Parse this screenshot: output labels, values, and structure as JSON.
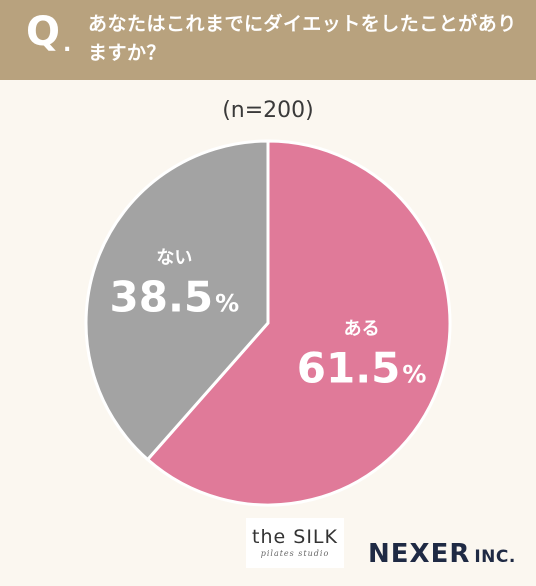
{
  "header": {
    "q_mark": "Q",
    "q_dot": ".",
    "question": "あなたはこれまでにダイエットをしたことがありますか？"
  },
  "chart_data": {
    "type": "pie",
    "sample_note": "(n=200)",
    "slices": [
      {
        "label": "ある",
        "value": 61.5,
        "value_text": "61.5",
        "unit": "%",
        "color": "#e07a99"
      },
      {
        "label": "ない",
        "value": 38.5,
        "value_text": "38.5",
        "unit": "%",
        "color": "#a3a3a3"
      }
    ],
    "start_angle_deg": 0,
    "direction": "clockwise",
    "legend": "none (labels inside slices)"
  },
  "logos": {
    "silk_main": "the SILK",
    "silk_sub": "pilates studio",
    "nexer": "NEXER",
    "nexer_suffix": "INC."
  },
  "colors": {
    "header_bg": "#b8a27e",
    "page_bg": "#fbf7f0",
    "text_dark": "#3a3a3a"
  }
}
